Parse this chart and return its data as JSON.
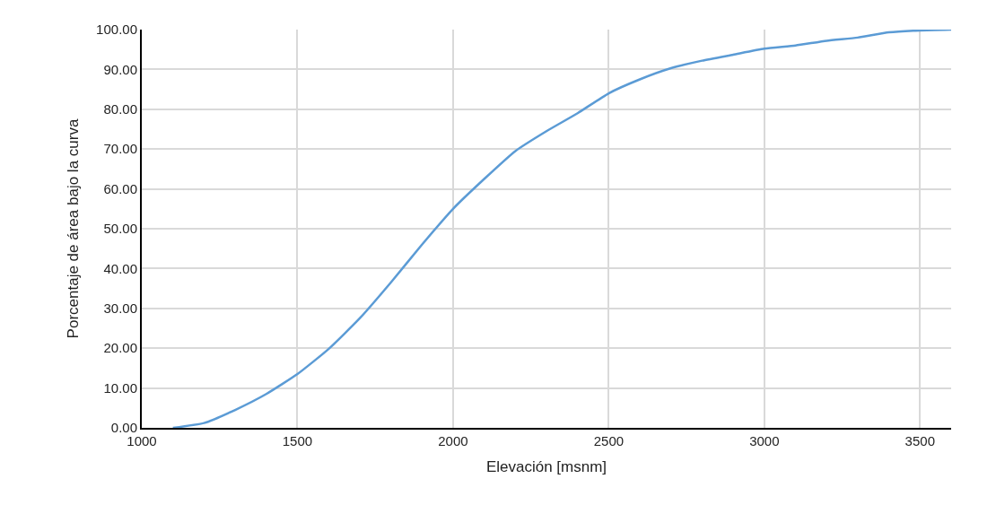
{
  "chart_data": {
    "type": "line",
    "xlabel": "Elevación [msnm]",
    "ylabel": "Porcentaje de área bajo la curva",
    "x": [
      1100,
      1200,
      1300,
      1400,
      1500,
      1600,
      1700,
      1800,
      1900,
      2000,
      2100,
      2200,
      2300,
      2400,
      2500,
      2600,
      2700,
      2800,
      2900,
      3000,
      3100,
      3200,
      3300,
      3400,
      3500,
      3600
    ],
    "series": [
      {
        "color": "#5b9bd5",
        "values": [
          0,
          1.2,
          4.5,
          8.5,
          13.5,
          19.8,
          27.5,
          36.5,
          46,
          55,
          62.5,
          69.5,
          74.5,
          79,
          84,
          87.5,
          90.3,
          92.2,
          93.7,
          95.2,
          96,
          97.2,
          98,
          99.3,
          99.8,
          100
        ]
      }
    ],
    "xlim": [
      1000,
      3600
    ],
    "xticks": [
      1000,
      1500,
      2000,
      2500,
      3000,
      3500
    ],
    "ylim": [
      0,
      100
    ],
    "yticks": [
      {
        "value": 0,
        "label": "0.00"
      },
      {
        "value": 10,
        "label": "10.00"
      },
      {
        "value": 20,
        "label": "20.00"
      },
      {
        "value": 30,
        "label": "30.00"
      },
      {
        "value": 40,
        "label": "40.00"
      },
      {
        "value": 50,
        "label": "50.00"
      },
      {
        "value": 60,
        "label": "60.00"
      },
      {
        "value": 70,
        "label": "70.00"
      },
      {
        "value": 80,
        "label": "80.00"
      },
      {
        "value": 90,
        "label": "90.00"
      },
      {
        "value": 100,
        "label": "100.00"
      }
    ],
    "grid": true
  }
}
